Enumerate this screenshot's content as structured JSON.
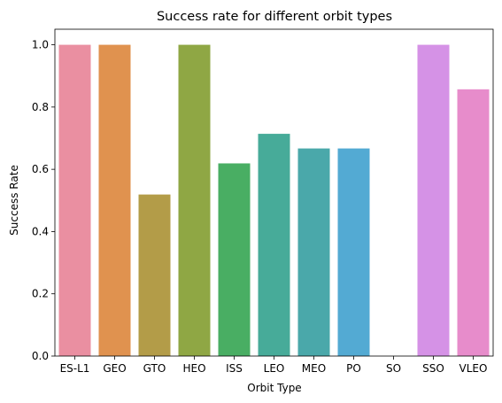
{
  "chart_data": {
    "type": "bar",
    "title": "Success rate for different orbit types",
    "xlabel": "Orbit Type",
    "ylabel": "Success Rate",
    "categories": [
      "ES-L1",
      "GEO",
      "GTO",
      "HEO",
      "ISS",
      "LEO",
      "MEO",
      "PO",
      "SO",
      "SSO",
      "VLEO"
    ],
    "values": [
      1.0,
      1.0,
      0.519,
      1.0,
      0.619,
      0.714,
      0.667,
      0.667,
      0.0,
      1.0,
      0.857
    ],
    "colors": [
      "#ea8fa1",
      "#e0924f",
      "#b39c48",
      "#8fa744",
      "#49ae63",
      "#47ab99",
      "#4aa8aa",
      "#53aad3",
      "#9fa4e7",
      "#d592e6",
      "#e78ccb"
    ],
    "ylim": [
      0,
      1.05
    ],
    "yticks": [
      0.0,
      0.2,
      0.4,
      0.6,
      0.8,
      1.0
    ],
    "ytick_labels": [
      "0.0",
      "0.2",
      "0.4",
      "0.6",
      "0.8",
      "1.0"
    ],
    "grid": false
  }
}
